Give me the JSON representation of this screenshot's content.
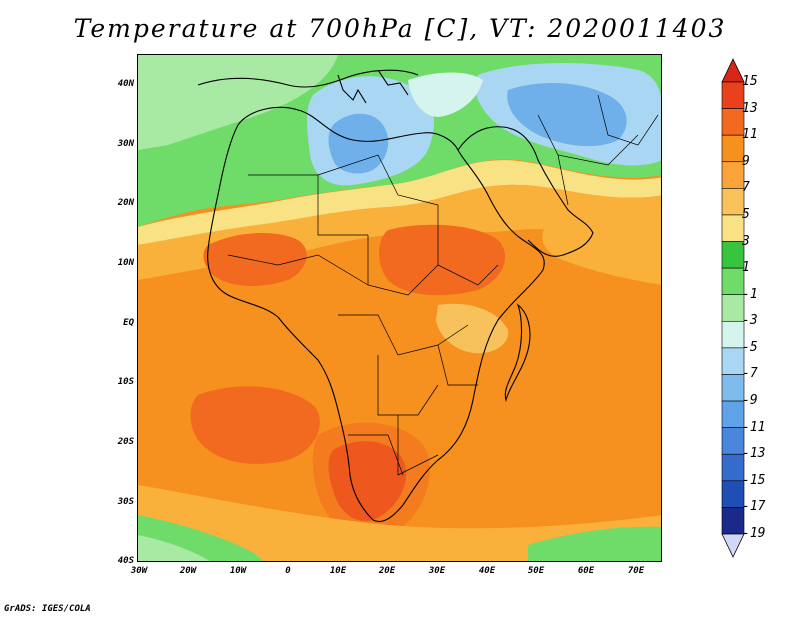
{
  "title": "Temperature at 700hPa [C], VT: 2020011403",
  "footer": "GrADS: IGES/COLA",
  "map": {
    "lat_labels": [
      "40N",
      "30N",
      "20N",
      "10N",
      "EQ",
      "10S",
      "20S",
      "30S",
      "40S"
    ],
    "lon_labels": [
      "30W",
      "20W",
      "10W",
      "0",
      "10E",
      "20E",
      "30E",
      "40E",
      "50E",
      "60E",
      "70E"
    ],
    "colors": {
      "very_hot": "#e8411c",
      "hot": "#f26a1f",
      "warm": "#f6901e",
      "mild": "#f9b13c",
      "pale": "#f8e284",
      "green_dark": "#39c43f",
      "green": "#6fdc6a",
      "green_light": "#a8eaa3",
      "cyan_pale": "#d6f4ee",
      "blue_pale": "#a9d6f2",
      "blue": "#6fb0ea",
      "blue_mid": "#4f8fe0"
    }
  },
  "colorbar": {
    "labels": [
      "15",
      "13",
      "11",
      "9",
      "7",
      "5",
      "3",
      "1",
      "-1",
      "-3",
      "-5",
      "-7",
      "-9",
      "-11",
      "-13",
      "-15",
      "-17",
      "-19"
    ],
    "colors": [
      "#d8261a",
      "#e8411c",
      "#f26a1f",
      "#f6901e",
      "#f9a33a",
      "#f9c25a",
      "#f8e284",
      "#39c43f",
      "#6fdc6a",
      "#a8eaa3",
      "#d6f4ee",
      "#a9d6f2",
      "#7fbcee",
      "#5ea2e8",
      "#4a86dc",
      "#356ccc",
      "#1f4fb5",
      "#1b2a8a",
      "#cfd8f7"
    ]
  }
}
